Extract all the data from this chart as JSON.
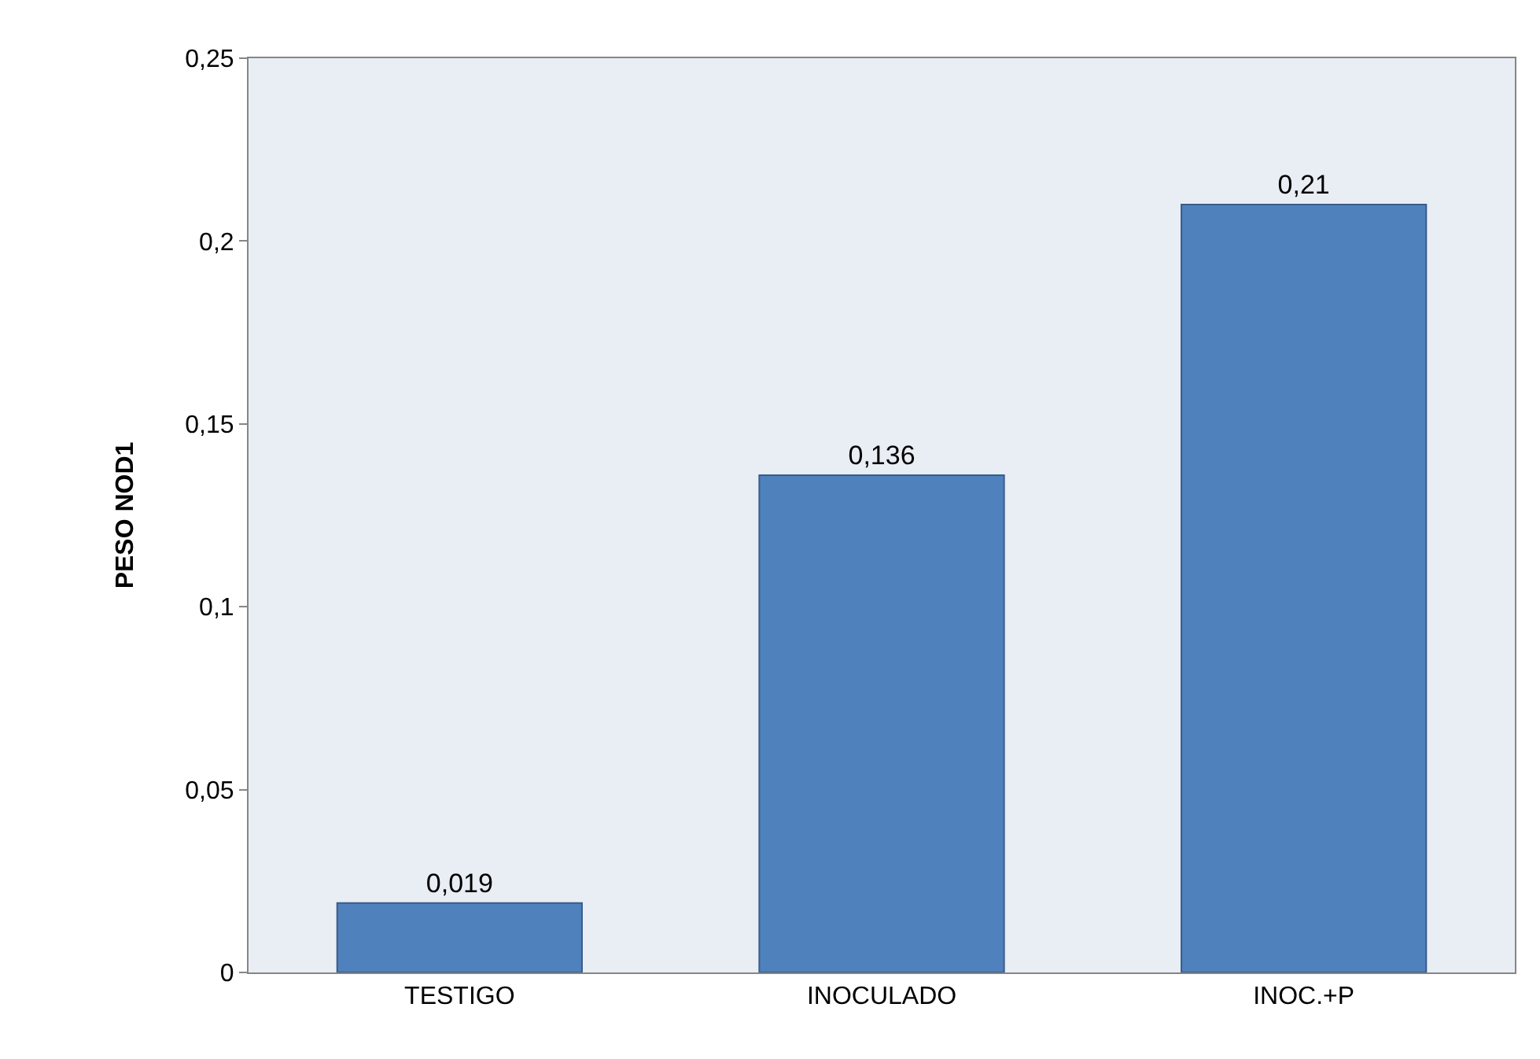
{
  "chart_data": {
    "type": "bar",
    "ylabel": "PESO NOD1",
    "categories": [
      "TESTIGO",
      "INOCULADO",
      "INOC.+P"
    ],
    "series": [
      {
        "color": "#4f81bd",
        "values": [
          0.019,
          0.136,
          0.21
        ],
        "value_labels": [
          "0,019",
          "0,136",
          "0,21"
        ]
      }
    ],
    "ylim": [
      0,
      0.25
    ],
    "yticks": [
      0,
      {
        "value": 0.05,
        "label": "0,05"
      },
      {
        "value": 0.1,
        "label": "0,1"
      },
      {
        "value": 0.15,
        "label": "0,15"
      },
      {
        "value": 0.2,
        "label": "0,2"
      },
      {
        "value": 0.25,
        "label": "0,25"
      }
    ],
    "grid": false,
    "legend": false
  }
}
